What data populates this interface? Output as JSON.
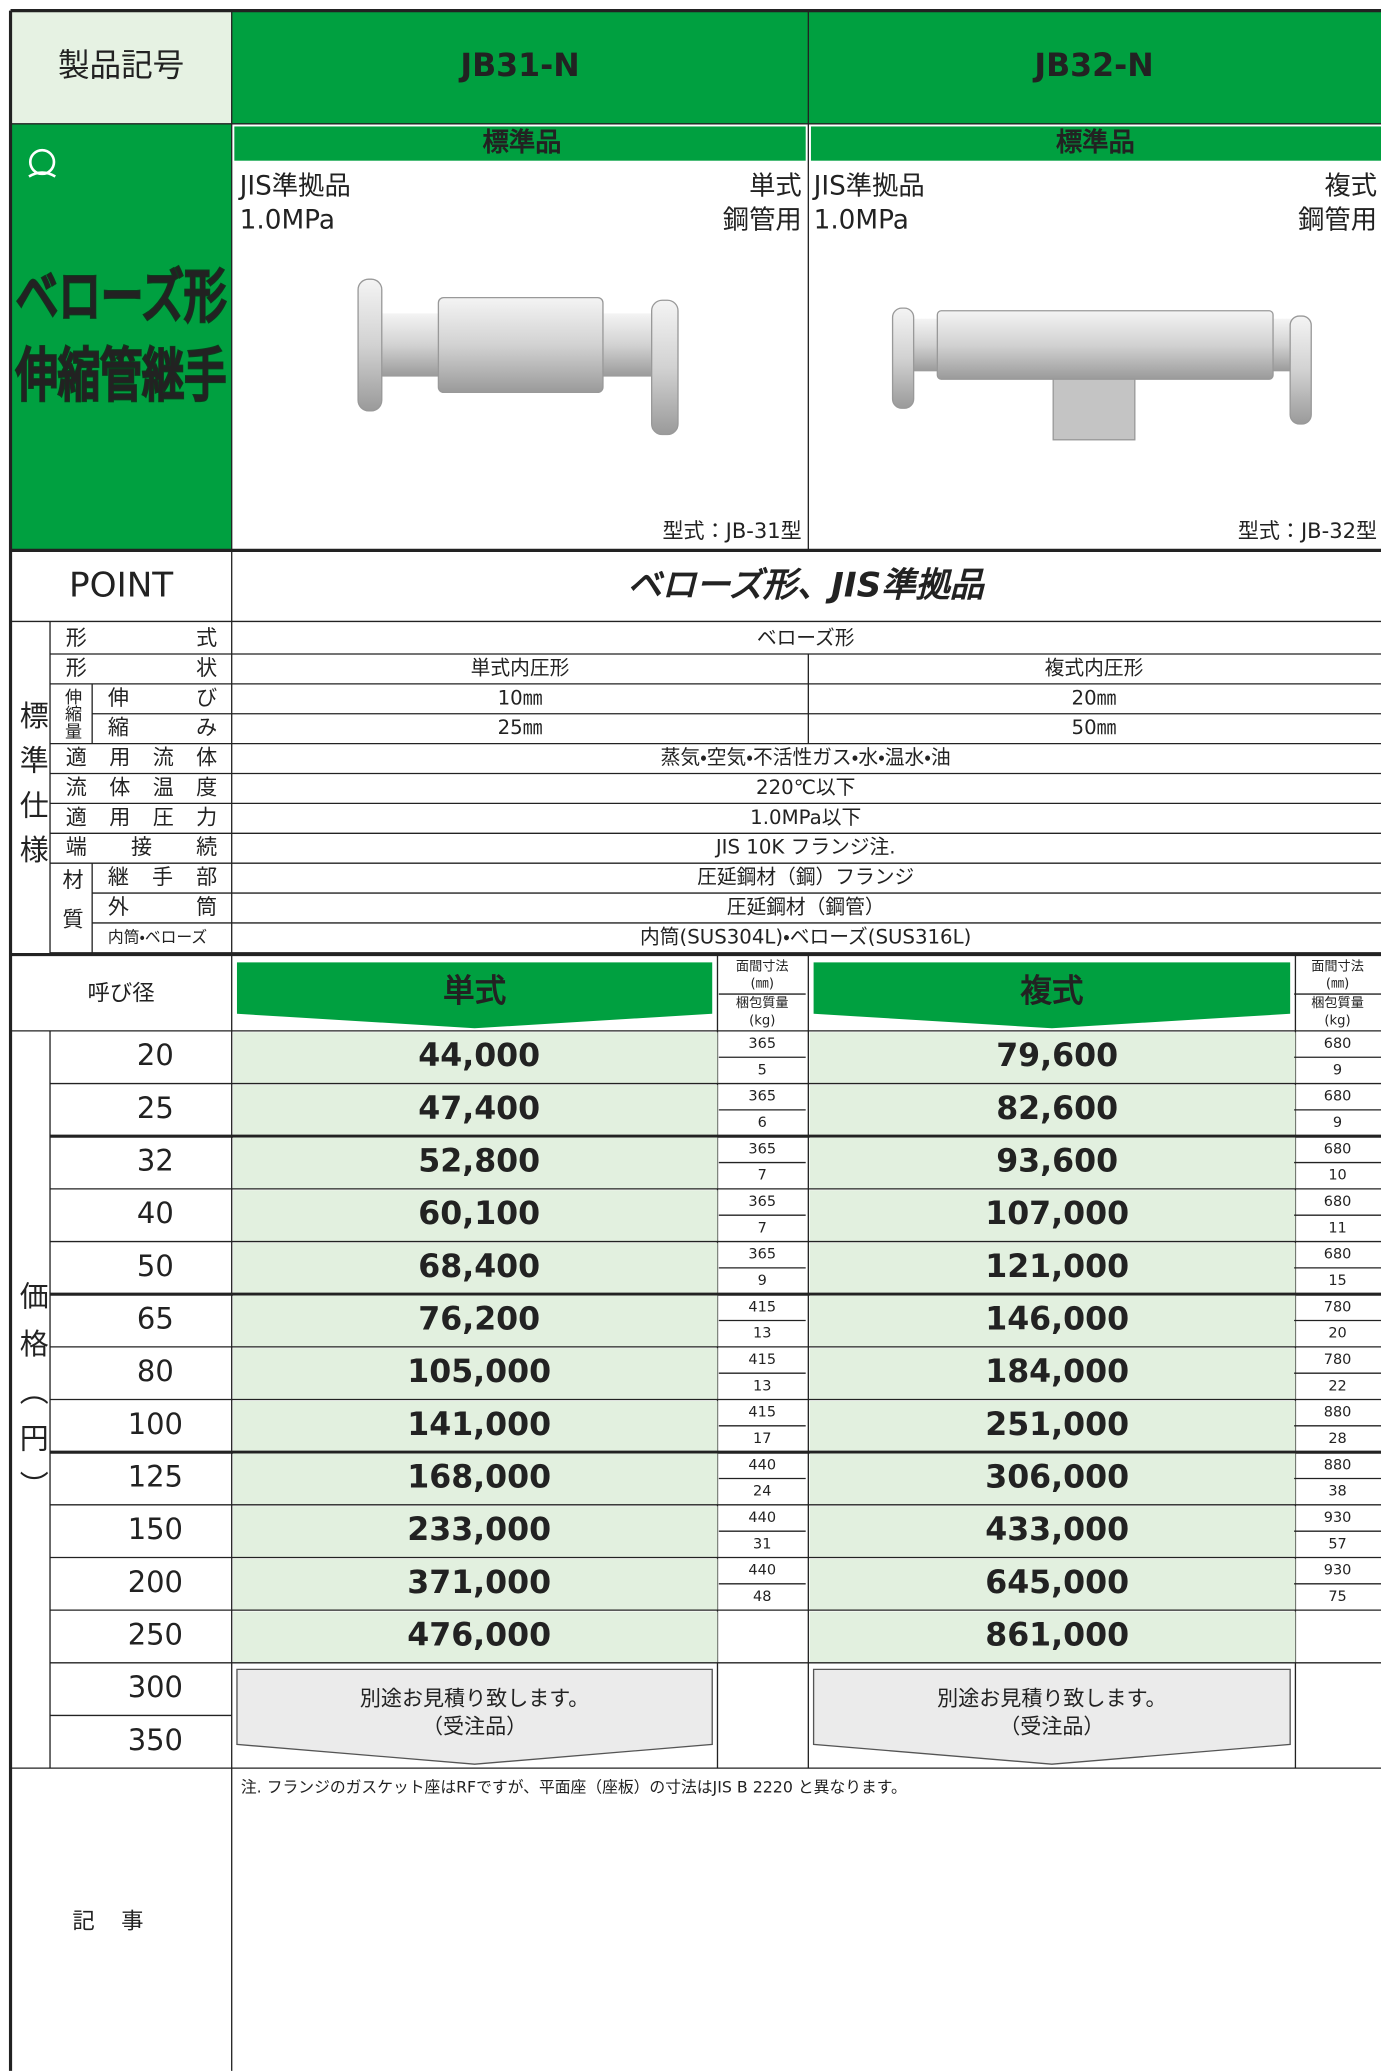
{
  "header": {
    "label": "製品記号",
    "products": [
      "JB31-N",
      "JB32-N"
    ]
  },
  "category": {
    "title": [
      "ベローズ形",
      "伸縮管継手"
    ]
  },
  "products": [
    {
      "badge": "標準品",
      "standard": "JIS準拠品",
      "type": "単式",
      "pressure": "1.0MPa",
      "use": "鋼管用",
      "model": "型式：JB-31型"
    },
    {
      "badge": "標準品",
      "standard": "JIS準拠品",
      "type": "複式",
      "pressure": "1.0MPa",
      "use": "鋼管用",
      "model": "型式：JB-32型"
    }
  ],
  "point": {
    "label": "POINT",
    "text": "ベローズ形、JIS準拠品"
  },
  "spec": {
    "label": "標準仕様",
    "items": [
      {
        "label": "形式",
        "value": "ベローズ形"
      },
      {
        "label": "形状",
        "values": [
          "単式内圧形",
          "複式内圧形"
        ]
      },
      {
        "label": "伸縮量",
        "rows": [
          {
            "label": "伸び",
            "values": [
              "10㎜",
              "20㎜"
            ]
          },
          {
            "label": "縮み",
            "values": [
              "25㎜",
              "50㎜"
            ]
          }
        ]
      },
      {
        "label": "適用流体",
        "value": "蒸気・空気・不活性ガス・水・温水・油"
      },
      {
        "label": "流体温度",
        "value": "220℃以下"
      },
      {
        "label": "適用圧力",
        "value": "1.0MPa以下"
      },
      {
        "label": "端接続",
        "value": "JIS 10K フランジ注."
      },
      {
        "label": "材質",
        "rows": [
          {
            "label": "継手部",
            "value": "圧延鋼材（鋼）フランジ"
          },
          {
            "label": "外筒",
            "value": "圧延鋼材（鋼管）"
          },
          {
            "label": "内筒・ベローズ",
            "value": "内筒(SUS304L)・ベローズ(SUS316L)"
          }
        ]
      }
    ]
  },
  "price": {
    "label": "価格（円）",
    "size_label": "呼び径",
    "series": [
      "単式",
      "複式"
    ],
    "dim_labels": [
      "面間寸法",
      "(㎜)",
      "梱包質量",
      "(kg)"
    ],
    "rows": [
      {
        "size": 20,
        "prices": [
          "44,000",
          "79,600"
        ],
        "dims": [
          [
            365,
            5
          ],
          [
            680,
            9
          ]
        ]
      },
      {
        "size": 25,
        "prices": [
          "47,400",
          "82,600"
        ],
        "dims": [
          [
            365,
            6
          ],
          [
            680,
            9
          ]
        ]
      },
      {
        "size": 32,
        "prices": [
          "52,800",
          "93,600"
        ],
        "dims": [
          [
            365,
            7
          ],
          [
            680,
            10
          ]
        ]
      },
      {
        "size": 40,
        "prices": [
          "60,100",
          "107,000"
        ],
        "dims": [
          [
            365,
            7
          ],
          [
            680,
            11
          ]
        ]
      },
      {
        "size": 50,
        "prices": [
          "68,400",
          "121,000"
        ],
        "dims": [
          [
            365,
            9
          ],
          [
            680,
            15
          ]
        ]
      },
      {
        "size": 65,
        "prices": [
          "76,200",
          "146,000"
        ],
        "dims": [
          [
            415,
            13
          ],
          [
            780,
            20
          ]
        ]
      },
      {
        "size": 80,
        "prices": [
          "105,000",
          "184,000"
        ],
        "dims": [
          [
            415,
            13
          ],
          [
            780,
            22
          ]
        ]
      },
      {
        "size": 100,
        "prices": [
          "141,000",
          "251,000"
        ],
        "dims": [
          [
            415,
            17
          ],
          [
            880,
            28
          ]
        ]
      },
      {
        "size": 125,
        "prices": [
          "168,000",
          "306,000"
        ],
        "dims": [
          [
            440,
            24
          ],
          [
            880,
            38
          ]
        ]
      },
      {
        "size": 150,
        "prices": [
          "233,000",
          "433,000"
        ],
        "dims": [
          [
            440,
            31
          ],
          [
            930,
            57
          ]
        ]
      },
      {
        "size": 200,
        "prices": [
          "371,000",
          "645,000"
        ],
        "dims": [
          [
            440,
            48
          ],
          [
            930,
            75
          ]
        ]
      },
      {
        "size": 250,
        "prices": [
          "476,000",
          "861,000"
        ]
      },
      {
        "size": 300
      },
      {
        "size": 350
      }
    ],
    "estimate": [
      "別途お見積り致します。",
      "（受注品）"
    ]
  },
  "notes": {
    "label": "記事",
    "text": "注. フランジのガスケット座はRFですが、平面座（座板）の寸法はJIS B 2220 と異なります。"
  }
}
